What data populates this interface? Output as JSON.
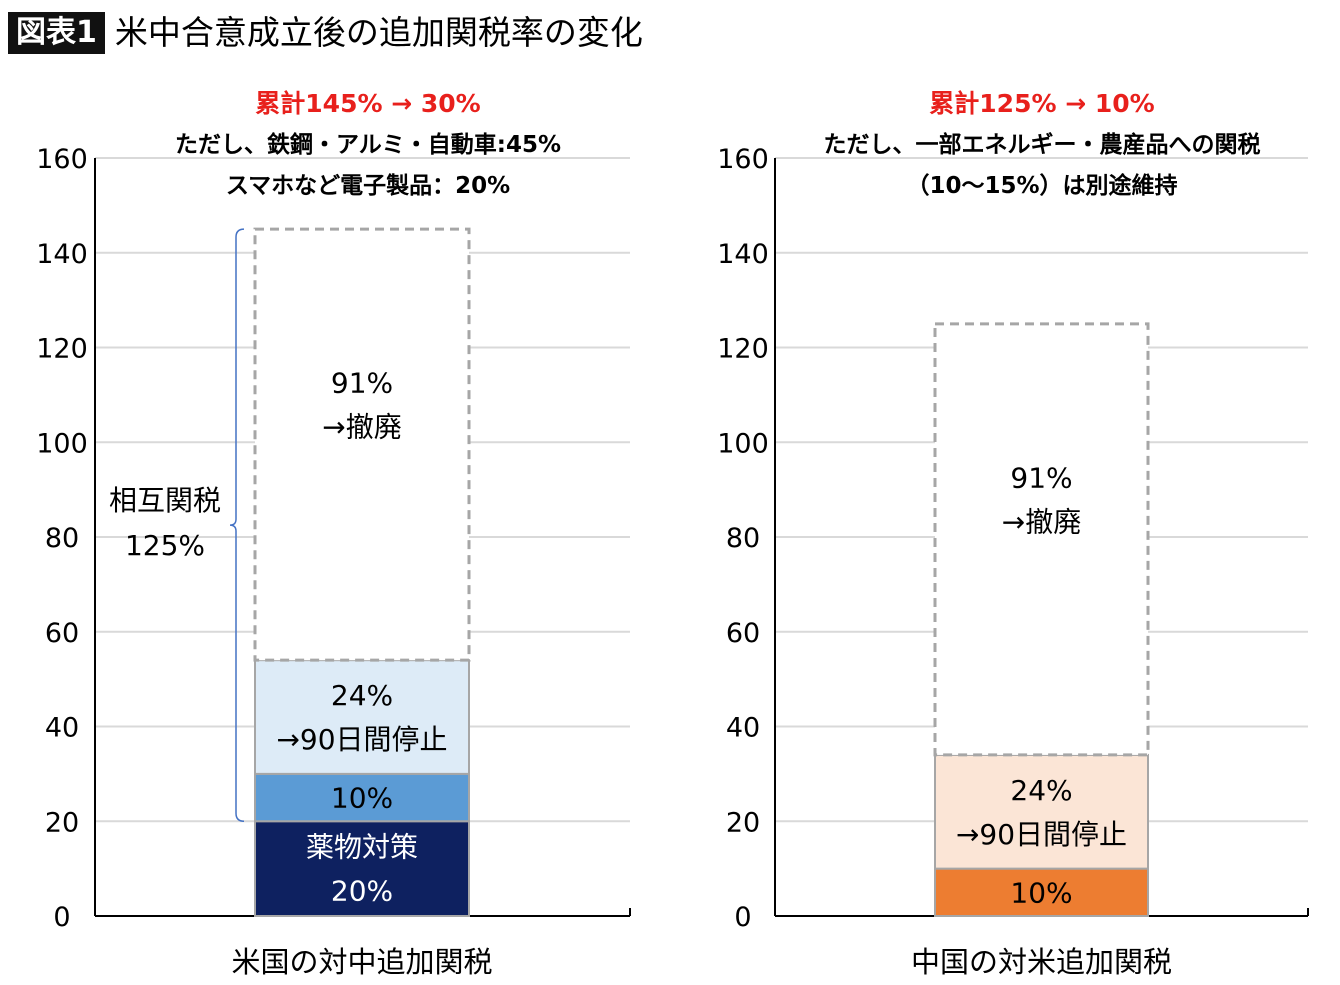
{
  "figure": {
    "badge": "図表1",
    "title": "米中合意成立後の追加関税率の変化"
  },
  "colors": {
    "navy": "#0e2160",
    "mid_blue": "#5b9bd5",
    "light_blue": "#ddebf7",
    "orange": "#ed7d31",
    "light_orange": "#fbe5d6",
    "red_text": "#e8201c",
    "dashed": "#a6a6a6",
    "grid": "#d9d9d9"
  },
  "chart_data": [
    {
      "type": "bar",
      "stacked": true,
      "category": "米国の対中追加関税",
      "ylim": [
        0,
        160
      ],
      "yticks": [
        0,
        20,
        40,
        60,
        80,
        100,
        120,
        140,
        160
      ],
      "grid": true,
      "notes": [
        "累計145% → 30%",
        "ただし、鉄鋼・アルミ・自動車:45%",
        "スマホなど電子製品：20%"
      ],
      "segments": [
        {
          "value": 20,
          "label_lines": [
            "薬物対策",
            "20%"
          ],
          "style": "solid",
          "color": "#0e2160",
          "text_color": "#ffffff"
        },
        {
          "value": 10,
          "label_lines": [
            "10%"
          ],
          "style": "solid",
          "color": "#5b9bd5",
          "text_color": "#000000"
        },
        {
          "value": 24,
          "label_lines": [
            "24%",
            "→90日間停止"
          ],
          "style": "solid",
          "color": "#ddebf7",
          "text_color": "#000000"
        },
        {
          "value": 91,
          "label_lines": [
            "91%",
            "→撤廃"
          ],
          "style": "dashed",
          "color": "#ffffff",
          "text_color": "#000000"
        }
      ],
      "bracket": {
        "from": 20,
        "to": 145,
        "label_lines": [
          "相互関税",
          "125%"
        ]
      }
    },
    {
      "type": "bar",
      "stacked": true,
      "category": "中国の対米追加関税",
      "ylim": [
        0,
        160
      ],
      "yticks": [
        0,
        20,
        40,
        60,
        80,
        100,
        120,
        140,
        160
      ],
      "grid": true,
      "notes": [
        "累計125% → 10%",
        "ただし、一部エネルギー・農産品への関税",
        "（10～15%）は別途維持"
      ],
      "segments": [
        {
          "value": 10,
          "label_lines": [
            "10%"
          ],
          "style": "solid",
          "color": "#ed7d31",
          "text_color": "#000000"
        },
        {
          "value": 24,
          "label_lines": [
            "24%",
            "→90日間停止"
          ],
          "style": "solid",
          "color": "#fbe5d6",
          "text_color": "#000000"
        },
        {
          "value": 91,
          "label_lines": [
            "91%",
            "→撤廃"
          ],
          "style": "dashed",
          "color": "#ffffff",
          "text_color": "#000000"
        }
      ]
    }
  ]
}
